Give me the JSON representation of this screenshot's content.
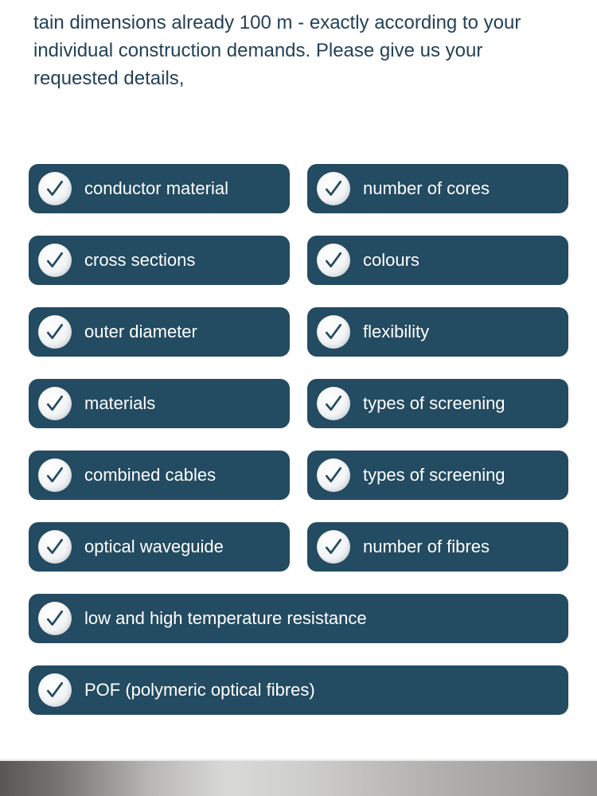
{
  "intro": {
    "text": "tain dimensions already 100 m - exactly according to your individual construction demands. Please give us your requested details,"
  },
  "features": {
    "rows": [
      [
        {
          "label": "conductor material"
        },
        {
          "label": "number of cores"
        }
      ],
      [
        {
          "label": "cross sections"
        },
        {
          "label": "colours"
        }
      ],
      [
        {
          "label": "outer diameter"
        },
        {
          "label": "flexibility"
        }
      ],
      [
        {
          "label": "materials"
        },
        {
          "label": "types of screening"
        }
      ],
      [
        {
          "label": "combined cables"
        },
        {
          "label": "types of screening"
        }
      ],
      [
        {
          "label": "optical waveguide"
        },
        {
          "label": "number of fibres"
        }
      ],
      [
        {
          "label": "low and high temperature resistance",
          "full": true
        }
      ],
      [
        {
          "label": "POF (polymeric optical fibres)",
          "full": true
        }
      ]
    ]
  },
  "styling": {
    "intro_color": "#234257",
    "intro_fontsize": 24,
    "item_bg": "#234b62",
    "item_radius": 12,
    "label_color": "#ffffff",
    "label_fontsize": 22,
    "check_stroke": "#234b62",
    "check_bg_light": "#ffffff",
    "check_bg_dark": "#d4dbe0",
    "row_gap": 28,
    "col_gap": 22
  }
}
